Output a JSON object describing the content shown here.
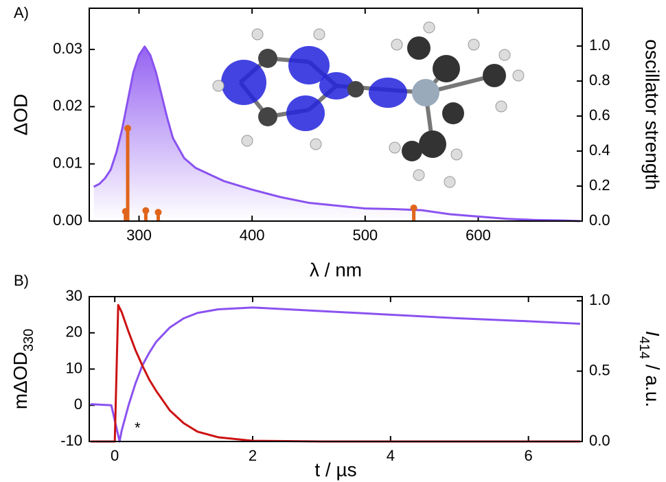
{
  "chart_data": [
    {
      "type": "line",
      "label": "A)",
      "xlabel": "λ / nm",
      "ylabel": "ΔOD",
      "ylabel_color": "#8a52f0",
      "y2label": "oscillator strength",
      "y2label_color": "#e0651c",
      "xlim": [
        256,
        692
      ],
      "xticks": [
        300,
        400,
        500,
        600
      ],
      "ylim": [
        0,
        0.0372
      ],
      "yticks": [
        {
          "value": 0,
          "label": "0.00"
        },
        {
          "value": 0.01,
          "label": "0.01"
        },
        {
          "value": 0.02,
          "label": "0.02"
        },
        {
          "value": 0.03,
          "label": "0.03"
        }
      ],
      "y2lim": [
        0,
        1.216
      ],
      "y2ticks": [
        {
          "value": 0,
          "label": "0.0"
        },
        0.2,
        0.4,
        0.6,
        0.8,
        {
          "value": 1,
          "label": "1.0"
        }
      ],
      "series": [
        {
          "color": "#8a52f0",
          "fill": "gradient",
          "x": [
            260,
            265,
            270,
            275,
            280,
            285,
            290,
            295,
            300,
            305,
            310,
            315,
            320,
            325,
            330,
            340,
            350,
            375,
            400,
            425,
            450,
            475,
            500,
            525,
            550,
            575,
            600,
            625,
            650,
            675,
            690
          ],
          "values": [
            0.006,
            0.0065,
            0.0075,
            0.009,
            0.012,
            0.016,
            0.021,
            0.026,
            0.029,
            0.0305,
            0.029,
            0.026,
            0.022,
            0.018,
            0.0145,
            0.011,
            0.0093,
            0.007,
            0.0055,
            0.0042,
            0.0032,
            0.0027,
            0.0022,
            0.0021,
            0.0019,
            0.0012,
            0.0008,
            0.0004,
            0.0002,
            0.0001,
            0
          ]
        },
        {
          "color": "#e0651c",
          "axis": "y2",
          "style": "stem",
          "x": [
            288,
            290,
            306,
            317,
            543
          ],
          "values": [
            0.055,
            0.53,
            0.06,
            0.05,
            0.075
          ]
        }
      ]
    },
    {
      "type": "line",
      "label": "B)",
      "xlabel": "t / µs",
      "ylabel": {
        "text": "mΔOD",
        "sub": "330"
      },
      "ylabel_color": "#8a52f0",
      "y2label": {
        "text": "I",
        "sub": "414",
        "unit": " / a.u."
      },
      "y2label_color": "#cc1111",
      "xlim": [
        -0.37,
        6.78
      ],
      "xticks": [
        0,
        2,
        4,
        6
      ],
      "ylim": [
        -10,
        30
      ],
      "yticks": [
        -10,
        0,
        10,
        20,
        30
      ],
      "y2lim": [
        0,
        1.03
      ],
      "y2ticks": [
        {
          "value": 0,
          "label": "0.0"
        },
        0.5,
        {
          "value": 1,
          "label": "1.0"
        }
      ],
      "annotations": [
        {
          "text": "*",
          "x": 0.33,
          "y": -5,
          "color": "#8a52f0"
        }
      ],
      "series": [
        {
          "color": "#8a52f0",
          "x": [
            -0.35,
            -0.05,
            0.07,
            0.1,
            0.2,
            0.3,
            0.4,
            0.5,
            0.6,
            0.8,
            1.0,
            1.2,
            1.5,
            2,
            3,
            4,
            5,
            6,
            6.75
          ],
          "values": [
            0.3,
            0,
            -10,
            -7,
            0,
            6,
            11,
            14.5,
            17.5,
            21.5,
            24,
            25.5,
            26.5,
            27,
            26,
            25,
            24,
            23.2,
            22.5
          ]
        },
        {
          "color": "#cc1111",
          "axis": "y2",
          "x": [
            -0.35,
            0,
            0.05,
            0.1,
            0.2,
            0.3,
            0.4,
            0.5,
            0.6,
            0.8,
            1.0,
            1.2,
            1.5,
            2,
            3,
            6.75
          ],
          "values": [
            0,
            0,
            0.97,
            0.92,
            0.78,
            0.65,
            0.54,
            0.44,
            0.36,
            0.22,
            0.13,
            0.07,
            0.03,
            0.005,
            0,
            0
          ]
        }
      ]
    }
  ]
}
